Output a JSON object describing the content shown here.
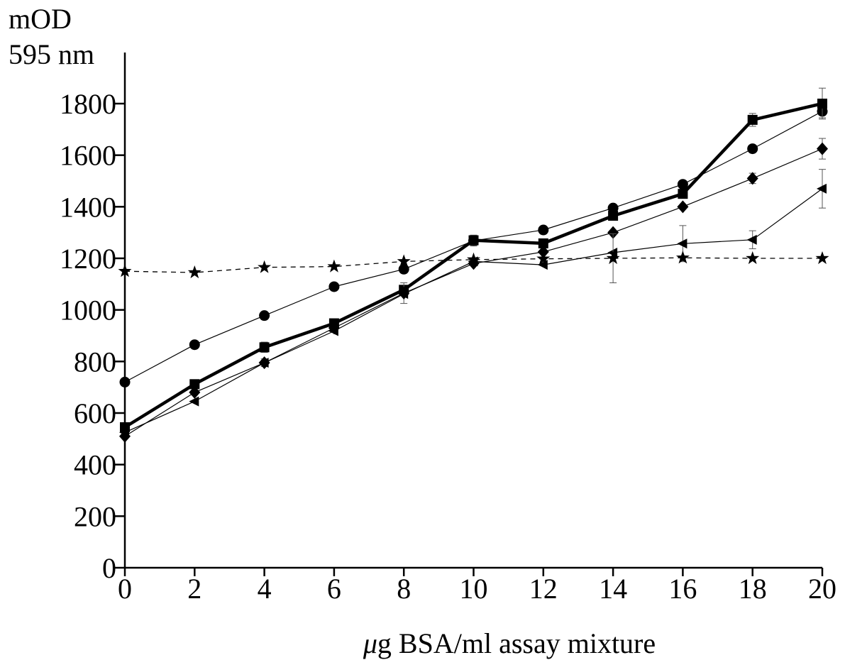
{
  "chart_data": {
    "type": "line",
    "title": "",
    "ylabel_line1": "mOD",
    "ylabel_line2": "595 nm",
    "xlabel_unit": "μ",
    "xlabel_rest": "g BSA/ml assay mixture",
    "xlim": [
      0,
      20
    ],
    "ylim": [
      0,
      1900
    ],
    "xticks": [
      "0",
      "2",
      "4",
      "6",
      "8",
      "10",
      "12",
      "14",
      "16",
      "18",
      "20"
    ],
    "yticks": [
      "0",
      "200",
      "400",
      "600",
      "800",
      "1000",
      "1200",
      "1400",
      "1600",
      "1800"
    ],
    "grid": false,
    "legend": "none",
    "x": [
      0,
      2,
      4,
      6,
      8,
      10,
      12,
      14,
      16,
      18,
      20
    ],
    "series": [
      {
        "marker": "circle",
        "line_style": "thin-solid",
        "values": [
          720,
          865,
          978,
          1090,
          1158,
          1268,
          1310,
          1395,
          1487,
          1625,
          1770
        ],
        "errors": [
          0,
          0,
          0,
          0,
          0,
          20,
          0,
          0,
          0,
          0,
          25
        ]
      },
      {
        "marker": "square",
        "line_style": "thick-solid",
        "values": [
          545,
          712,
          855,
          948,
          1078,
          1270,
          1258,
          1365,
          1450,
          1737,
          1800
        ],
        "errors": [
          0,
          10,
          20,
          10,
          15,
          20,
          10,
          15,
          0,
          25,
          60
        ]
      },
      {
        "marker": "diamond",
        "line_style": "thin-solid",
        "values": [
          510,
          680,
          795,
          930,
          1065,
          1180,
          1225,
          1300,
          1400,
          1510,
          1625
        ],
        "errors": [
          0,
          0,
          15,
          0,
          40,
          0,
          0,
          0,
          0,
          20,
          40
        ]
      },
      {
        "marker": "triangle-left",
        "line_style": "thin-solid",
        "values": [
          525,
          645,
          795,
          918,
          1062,
          1188,
          1175,
          1222,
          1257,
          1272,
          1470
        ],
        "errors": [
          0,
          0,
          0,
          0,
          0,
          0,
          0,
          0,
          70,
          35,
          75
        ]
      },
      {
        "marker": "star",
        "line_style": "dashed",
        "values": [
          1150,
          1145,
          1165,
          1168,
          1188,
          1195,
          1198,
          1200,
          1202,
          1200,
          1200
        ],
        "errors": [
          0,
          0,
          0,
          0,
          0,
          0,
          0,
          95,
          0,
          0,
          0
        ]
      }
    ]
  }
}
